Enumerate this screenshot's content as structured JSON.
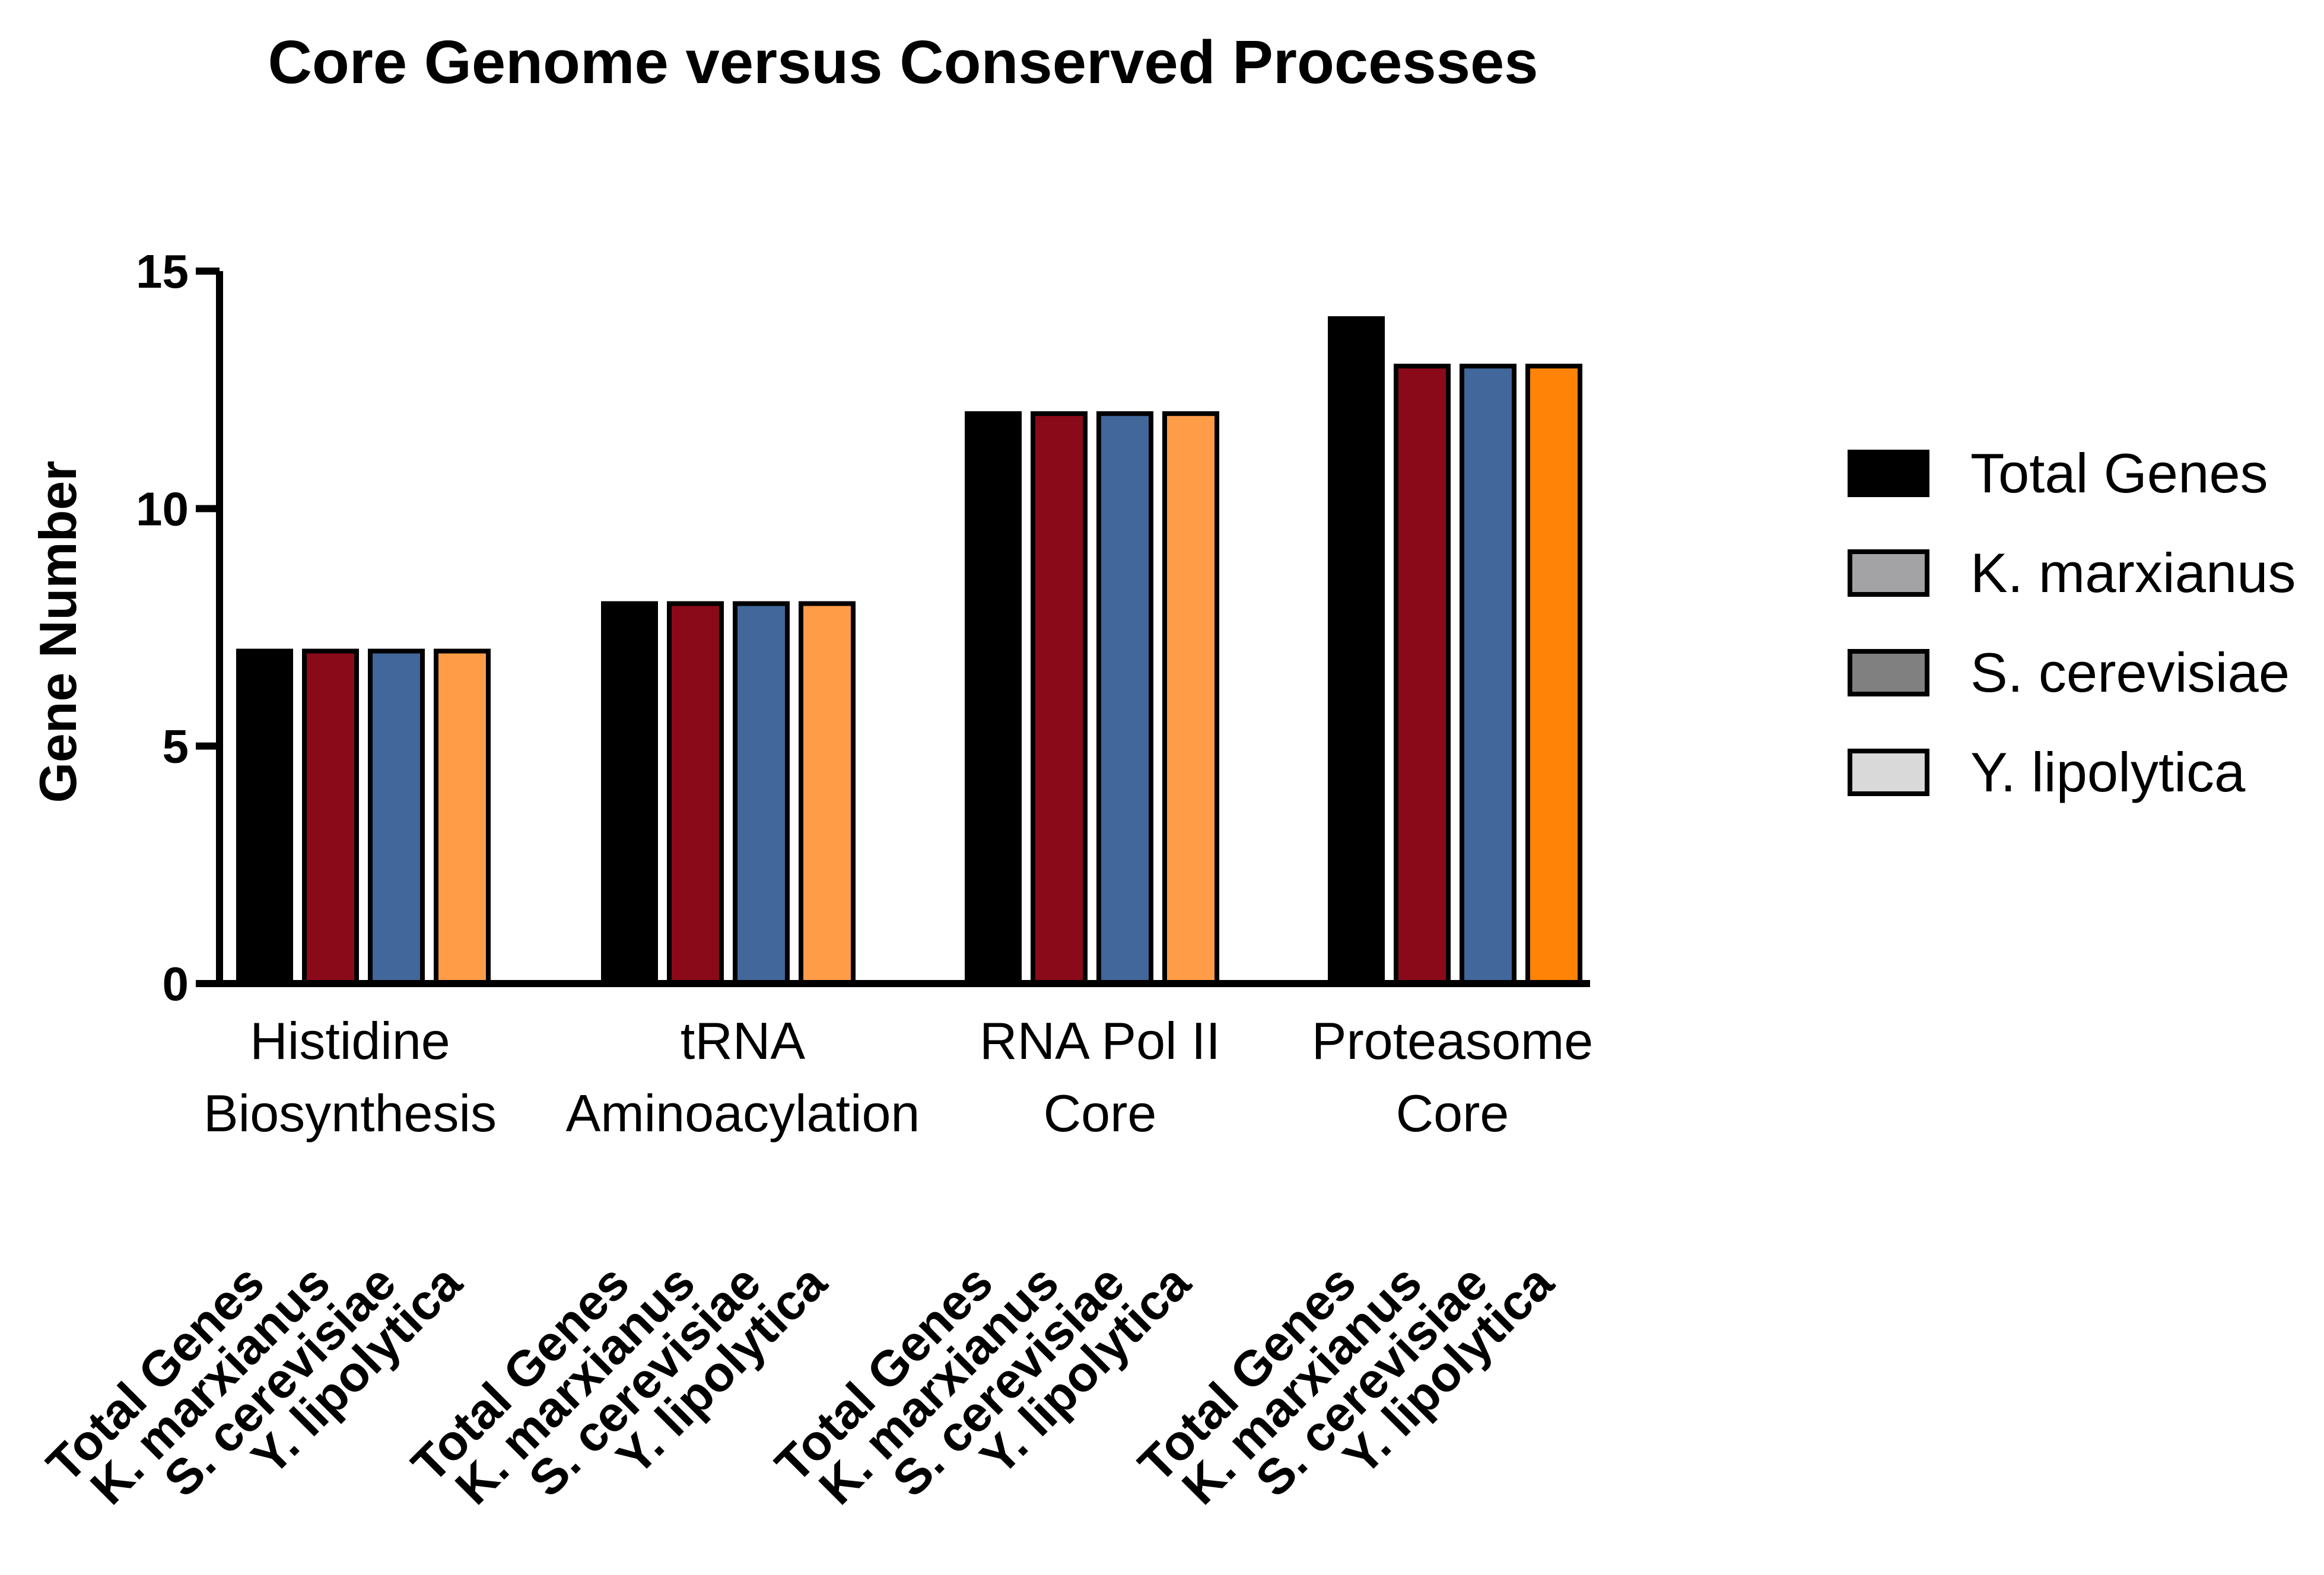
{
  "chart_data": {
    "type": "bar",
    "title": "Core Genome versus Conserved Processes",
    "xlabel": "",
    "ylabel": "Gene Number",
    "ylim": [
      0,
      15
    ],
    "yticks": [
      "0",
      "5",
      "10",
      "15"
    ],
    "categories": [
      [
        "Histidine",
        "Biosynthesis"
      ],
      [
        "tRNA",
        "Aminoacylation"
      ],
      [
        "RNA Pol II",
        "Core"
      ],
      [
        "Proteasome",
        "Core"
      ]
    ],
    "series": [
      {
        "name": "Total Genes",
        "values": [
          7,
          8,
          12,
          14
        ]
      },
      {
        "name": "K. marxianus",
        "values": [
          7,
          8,
          12,
          13
        ]
      },
      {
        "name": "S. cerevisiae",
        "values": [
          7,
          8,
          12,
          13
        ]
      },
      {
        "name": "Y. lipolytica",
        "values": [
          7,
          8,
          12,
          13
        ]
      }
    ],
    "bar_colors": [
      [
        "#000000",
        "#8b0a1a",
        "#41679b",
        "#ff9c48"
      ],
      [
        "#000000",
        "#8b0a1a",
        "#41679b",
        "#ff9c48"
      ],
      [
        "#000000",
        "#8b0a1a",
        "#41679b",
        "#ff9c48"
      ],
      [
        "#000000",
        "#8b0a1a",
        "#41679b",
        "#ff8306"
      ]
    ],
    "legend": {
      "position": "right",
      "colors": [
        "#000000",
        "#a3a3a6",
        "#808080",
        "#d9d9d9"
      ]
    },
    "rotated_bar_labels": [
      "Total Genes",
      "K. marxianus",
      "S. cerevisiae",
      "Y. lipolytica"
    ],
    "grid": false
  }
}
